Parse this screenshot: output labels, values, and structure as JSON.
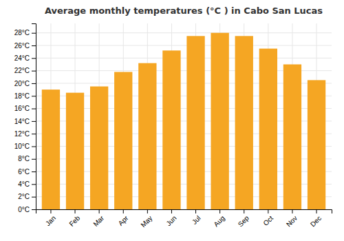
{
  "chart_data": {
    "type": "bar",
    "title": "Average monthly temperatures (°C ) in Cabo San Lucas",
    "categories": [
      "Jan",
      "Feb",
      "Mar",
      "Apr",
      "May",
      "Jun",
      "Jul",
      "Aug",
      "Sep",
      "Oct",
      "Nov",
      "Dec"
    ],
    "values": [
      19.0,
      18.5,
      19.5,
      21.8,
      23.2,
      25.2,
      27.5,
      28.0,
      27.5,
      25.5,
      23.0,
      20.5
    ],
    "color": "#F5A623",
    "ylim": [
      0,
      29.5
    ],
    "yticks": [
      {
        "value": 0,
        "label": "0°C"
      },
      {
        "value": 2,
        "label": "2°C"
      },
      {
        "value": 4,
        "label": "4°C"
      },
      {
        "value": 6,
        "label": "6°C"
      },
      {
        "value": 8,
        "label": "8°C"
      },
      {
        "value": 10,
        "label": "10°C"
      },
      {
        "value": 12,
        "label": "12°C"
      },
      {
        "value": 14,
        "label": "14°C"
      },
      {
        "value": 16,
        "label": "16°C"
      },
      {
        "value": 18,
        "label": "18°C"
      },
      {
        "value": 20,
        "label": "20°C"
      },
      {
        "value": 22,
        "label": "22°C"
      },
      {
        "value": 24,
        "label": "24°C"
      },
      {
        "value": 26,
        "label": "26°C"
      },
      {
        "value": 28,
        "label": "28°C"
      }
    ],
    "grid": true
  }
}
